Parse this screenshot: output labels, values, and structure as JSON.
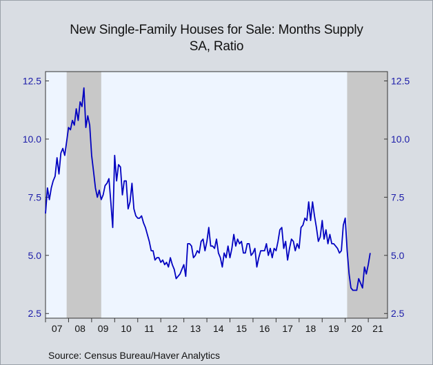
{
  "title": "New Single-Family Houses for Sale: Months Supply",
  "subtitle": "SA, Ratio",
  "source": "Source:  Census Bureau/Haver Analytics",
  "colors": {
    "line": "#0000c0",
    "plot_bg": "#eef5ff",
    "recession": "#c8c8c8",
    "frame_bg": "#d9dde3",
    "axis_text": "#1a1aa8"
  },
  "chart_data": {
    "type": "line",
    "title": "New Single-Family Houses for Sale: Months Supply",
    "subtitle": "SA, Ratio",
    "xlabel": "",
    "ylabel": "",
    "ylim": [
      2.3,
      12.9
    ],
    "xlim": [
      2007.0,
      2021.833
    ],
    "y_ticks": [
      2.5,
      5.0,
      7.5,
      10.0,
      12.5
    ],
    "y_tick_labels": [
      "2.5",
      "5.0",
      "7.5",
      "10.0",
      "12.5"
    ],
    "x_ticks": [
      "07",
      "08",
      "09",
      "10",
      "11",
      "12",
      "13",
      "14",
      "15",
      "16",
      "17",
      "18",
      "19",
      "20",
      "21"
    ],
    "grid": false,
    "recessions": [
      [
        2007.917,
        2009.417
      ],
      [
        2020.083,
        2021.833
      ]
    ],
    "series": [
      {
        "start": 2007.0,
        "step": 0.08333,
        "values": [
          6.8,
          7.9,
          7.4,
          7.9,
          8.2,
          8.4,
          9.2,
          8.5,
          9.4,
          9.6,
          9.3,
          9.9,
          10.5,
          10.4,
          10.8,
          10.6,
          11.3,
          10.8,
          11.6,
          11.4,
          12.2,
          10.5,
          11.0,
          10.6,
          9.3,
          8.6,
          7.9,
          7.5,
          7.8,
          7.4,
          7.6,
          8.0,
          8.1,
          8.3,
          7.3,
          6.2,
          9.3,
          8.2,
          8.9,
          8.8,
          7.6,
          8.2,
          8.2,
          7.0,
          7.3,
          8.1,
          7.0,
          6.7,
          6.6,
          6.6,
          6.7,
          6.4,
          6.2,
          5.9,
          5.6,
          5.2,
          5.2,
          4.8,
          4.9,
          4.9,
          4.7,
          4.8,
          4.6,
          4.7,
          4.5,
          4.9,
          4.6,
          4.4,
          4.0,
          4.1,
          4.2,
          4.4,
          4.6,
          4.1,
          5.5,
          5.5,
          5.4,
          4.9,
          5.0,
          5.2,
          5.1,
          5.6,
          5.7,
          5.2,
          5.6,
          6.2,
          5.4,
          5.4,
          5.3,
          5.7,
          5.1,
          4.9,
          4.5,
          5.1,
          4.9,
          5.4,
          4.9,
          5.3,
          5.9,
          5.4,
          5.7,
          5.5,
          5.6,
          5.1,
          5.1,
          5.5,
          5.5,
          5.0,
          5.1,
          5.3,
          4.5,
          4.9,
          5.2,
          5.2,
          5.2,
          5.5,
          5.0,
          5.3,
          4.9,
          5.3,
          5.2,
          5.6,
          6.1,
          6.2,
          5.3,
          5.6,
          4.8,
          5.3,
          5.7,
          5.6,
          5.2,
          5.5,
          5.3,
          6.2,
          6.3,
          6.6,
          6.5,
          7.3,
          6.5,
          7.3,
          6.7,
          6.2,
          5.6,
          5.8,
          6.5,
          5.7,
          6.1,
          5.5,
          5.9,
          5.5,
          5.5,
          5.4,
          5.3,
          5.1,
          5.2,
          6.3,
          6.6,
          5.2,
          4.2,
          3.6,
          3.5,
          3.5,
          3.5,
          4.0,
          3.8,
          3.6,
          4.5,
          4.2,
          4.6,
          5.1
        ]
      }
    ]
  }
}
